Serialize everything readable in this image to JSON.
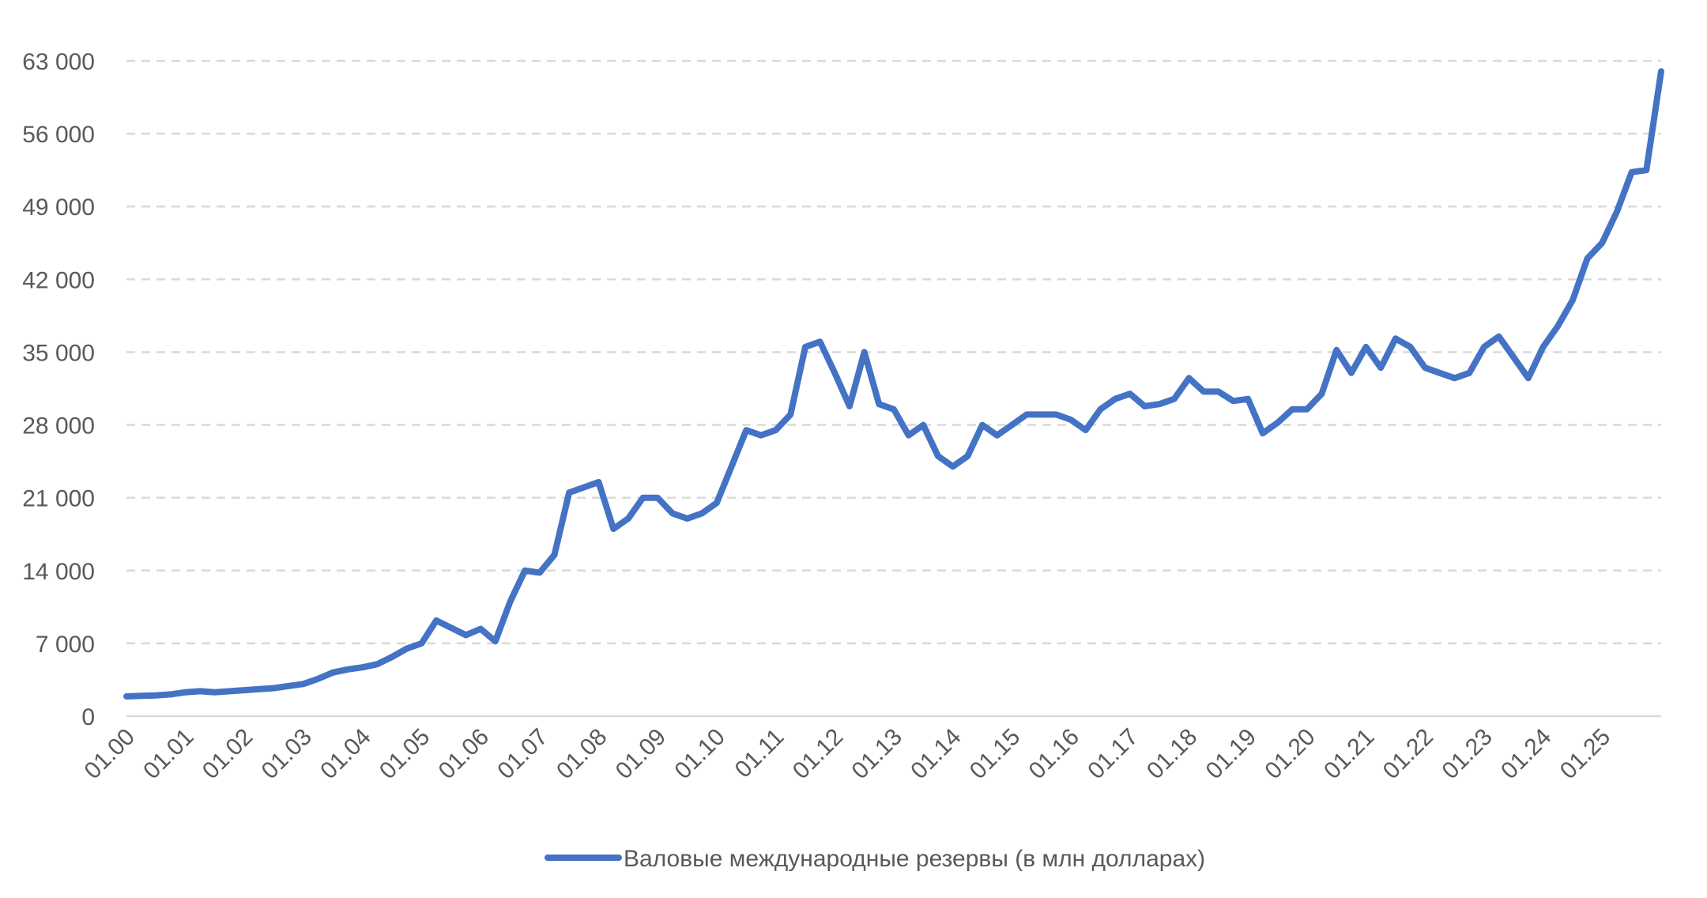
{
  "chart_data": {
    "type": "line",
    "categories": [
      "01.00",
      null,
      null,
      null,
      "01.01",
      null,
      null,
      null,
      "01.02",
      null,
      null,
      null,
      "01.03",
      null,
      null,
      null,
      "01.04",
      null,
      null,
      null,
      "01.05",
      null,
      null,
      null,
      "01.06",
      null,
      null,
      null,
      "01.07",
      null,
      null,
      null,
      "01.08",
      null,
      null,
      null,
      "01.09",
      null,
      null,
      null,
      "01.10",
      null,
      null,
      null,
      "01.11",
      null,
      null,
      null,
      "01.12",
      null,
      null,
      null,
      "01.13",
      null,
      null,
      null,
      "01.14",
      null,
      null,
      null,
      "01.15",
      null,
      null,
      null,
      "01.16",
      null,
      null,
      null,
      "01.17",
      null,
      null,
      null,
      "01.18",
      null,
      null,
      null,
      "01.19",
      null,
      null,
      null,
      "01.20",
      null,
      null,
      null,
      "01.21",
      null,
      null,
      null,
      "01.22",
      null,
      null,
      null,
      "01.23",
      null,
      null,
      null,
      "01.24",
      null,
      null,
      null,
      "01.25",
      null,
      null,
      null,
      null
    ],
    "series": [
      {
        "name": "Валовые международные резервы (в млн долларах)",
        "color": "#4472c4",
        "values": [
          1900,
          1950,
          2000,
          2100,
          2300,
          2400,
          2300,
          2400,
          2500,
          2600,
          2700,
          2900,
          3100,
          3600,
          4200,
          4500,
          4700,
          5000,
          5700,
          6500,
          7000,
          9200,
          8500,
          7800,
          8400,
          7200,
          11000,
          14000,
          13800,
          15500,
          21500,
          22000,
          22500,
          18000,
          19000,
          21000,
          21000,
          19500,
          19000,
          19500,
          20500,
          24000,
          27500,
          27000,
          27500,
          29000,
          35500,
          36000,
          33000,
          29800,
          35000,
          30000,
          29500,
          27000,
          28000,
          25000,
          24000,
          25000,
          28000,
          27000,
          28000,
          29000,
          29000,
          29000,
          28500,
          27500,
          29500,
          30500,
          31000,
          29800,
          30000,
          30500,
          32500,
          31200,
          31200,
          30300,
          30500,
          27200,
          28200,
          29500,
          29500,
          31000,
          35200,
          33000,
          35500,
          33500,
          36300,
          35500,
          33500,
          33000,
          32500,
          33000,
          35500,
          36500,
          34500,
          32500,
          35500,
          37500,
          40000,
          44000,
          45500,
          48500,
          52300,
          52500,
          62000
        ]
      }
    ],
    "ylim": [
      0,
      63000
    ],
    "yticks": [
      0,
      {
        "value": 7000,
        "label": "7 000"
      },
      {
        "value": 14000,
        "label": "14 000"
      },
      {
        "value": 21000,
        "label": "21 000"
      },
      {
        "value": 28000,
        "label": "28 000"
      },
      {
        "value": 35000,
        "label": "35 000"
      },
      {
        "value": 42000,
        "label": "42 000"
      },
      {
        "value": 49000,
        "label": "49 000"
      },
      {
        "value": 56000,
        "label": "56 000"
      },
      {
        "value": 63000,
        "label": "63 000"
      }
    ],
    "grid": true,
    "legend": "bottom"
  }
}
